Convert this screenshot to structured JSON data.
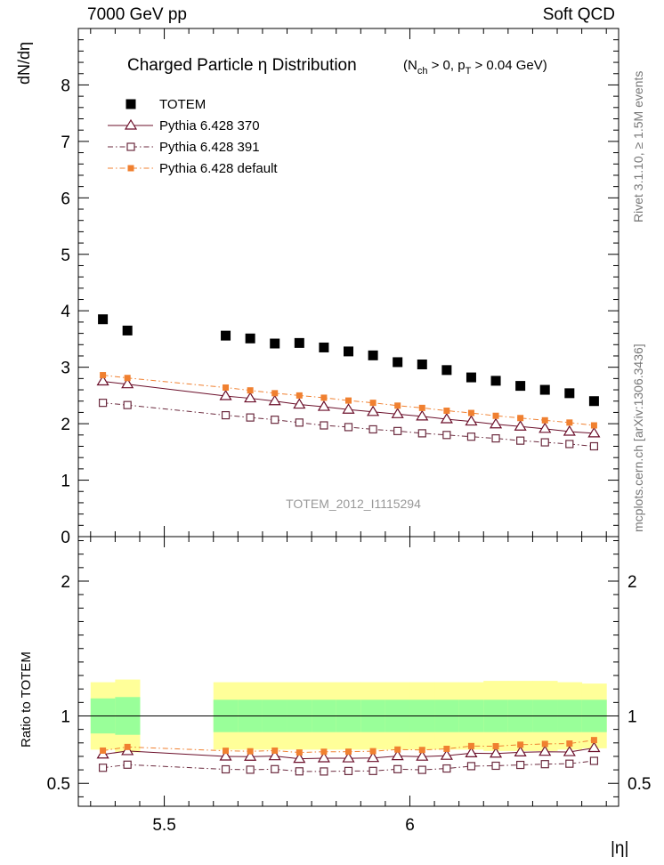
{
  "header": {
    "left_label": "7000 GeV pp",
    "right_label": "Soft QCD"
  },
  "side_labels": {
    "rivet": "Rivet 3.1.10, ≥ 1.5M events",
    "mcplots": "mcplots.cern.ch [arXiv:1306.3436]"
  },
  "chart_data": {
    "type": "scatter",
    "title": "Charged Particle  η Distribution",
    "title_cut": "(N_ch > 0, p_T > 0.04 GeV)",
    "title_cut_parts": [
      "(N",
      "ch",
      " > 0, p",
      "T",
      " > 0.04 GeV)"
    ],
    "ylabel": "dN/dη",
    "xlabel": "|η|",
    "ratio_ylabel": "Ratio to TOTEM",
    "analysis_id": "TOTEM_2012_I1115294",
    "xlim": [
      5.325,
      6.425
    ],
    "ylim": [
      0,
      9
    ],
    "ratio_ylim": [
      0.33,
      2.33
    ],
    "x_ticks": [
      5.5,
      6
    ],
    "x_tick_labels": [
      "5.5",
      "6"
    ],
    "y_ticks": [
      0,
      1,
      2,
      3,
      4,
      5,
      6,
      7,
      8
    ],
    "y_tick_labels": [
      "0",
      "1",
      "2",
      "3",
      "4",
      "5",
      "6",
      "7",
      "8"
    ],
    "ratio_ticks": [
      0.5,
      1,
      2
    ],
    "ratio_tick_labels": [
      "0.5",
      "1",
      "2"
    ],
    "legend_placement": "top-left",
    "x": [
      5.375,
      5.425,
      5.625,
      5.675,
      5.725,
      5.775,
      5.825,
      5.875,
      5.925,
      5.975,
      6.025,
      6.075,
      6.125,
      6.175,
      6.225,
      6.275,
      6.325,
      6.375
    ],
    "bin_low": [
      5.35,
      5.4,
      5.6,
      5.65,
      5.7,
      5.75,
      5.8,
      5.85,
      5.9,
      5.95,
      6.0,
      6.05,
      6.1,
      6.15,
      6.2,
      6.25,
      6.3,
      6.35
    ],
    "bin_high": [
      5.4,
      5.45,
      5.65,
      5.7,
      5.75,
      5.8,
      5.85,
      5.9,
      5.95,
      6.0,
      6.05,
      6.1,
      6.15,
      6.2,
      6.25,
      6.3,
      6.35,
      6.4
    ],
    "series": [
      {
        "name": "TOTEM",
        "legend": "TOTEM",
        "marker": "filled-square",
        "color": "#000000",
        "line": "none",
        "values": [
          3.85,
          3.65,
          3.56,
          3.51,
          3.42,
          3.43,
          3.35,
          3.28,
          3.21,
          3.09,
          3.05,
          2.95,
          2.82,
          2.76,
          2.67,
          2.6,
          2.54,
          2.4
        ]
      },
      {
        "name": "Pythia 6.428 370",
        "legend": "Pythia 6.428 370",
        "marker": "open-triangle",
        "color": "#6b0f2a",
        "line": "solid",
        "values": [
          2.75,
          2.7,
          2.49,
          2.45,
          2.4,
          2.34,
          2.3,
          2.25,
          2.21,
          2.17,
          2.13,
          2.08,
          2.04,
          1.99,
          1.95,
          1.91,
          1.86,
          1.83
        ]
      },
      {
        "name": "Pythia 6.428 391",
        "legend": "Pythia 6.428 391",
        "marker": "open-square",
        "color": "#6b2a3e",
        "line": "dash-dot",
        "values": [
          2.37,
          2.33,
          2.15,
          2.11,
          2.07,
          2.02,
          1.97,
          1.94,
          1.9,
          1.87,
          1.83,
          1.8,
          1.77,
          1.74,
          1.7,
          1.67,
          1.64,
          1.6
        ]
      },
      {
        "name": "Pythia 6.428 default",
        "legend": "Pythia 6.428 default",
        "marker": "filled-square-small",
        "color": "#f08030",
        "line": "dash-dot",
        "values": [
          2.86,
          2.81,
          2.64,
          2.59,
          2.54,
          2.5,
          2.46,
          2.41,
          2.37,
          2.32,
          2.28,
          2.23,
          2.19,
          2.14,
          2.1,
          2.06,
          2.02,
          1.97
        ]
      }
    ],
    "ratio": {
      "reference": 1.0,
      "band_outer": [
        0.25,
        0.27,
        0.25,
        0.25,
        0.25,
        0.25,
        0.25,
        0.25,
        0.25,
        0.25,
        0.25,
        0.25,
        0.25,
        0.26,
        0.26,
        0.26,
        0.25,
        0.24
      ],
      "band_inner": [
        0.13,
        0.14,
        0.12,
        0.12,
        0.12,
        0.12,
        0.12,
        0.12,
        0.12,
        0.12,
        0.12,
        0.12,
        0.12,
        0.12,
        0.12,
        0.12,
        0.12,
        0.12
      ],
      "band_outer_color": "#ffff99",
      "band_inner_color": "#99ff99"
    }
  }
}
